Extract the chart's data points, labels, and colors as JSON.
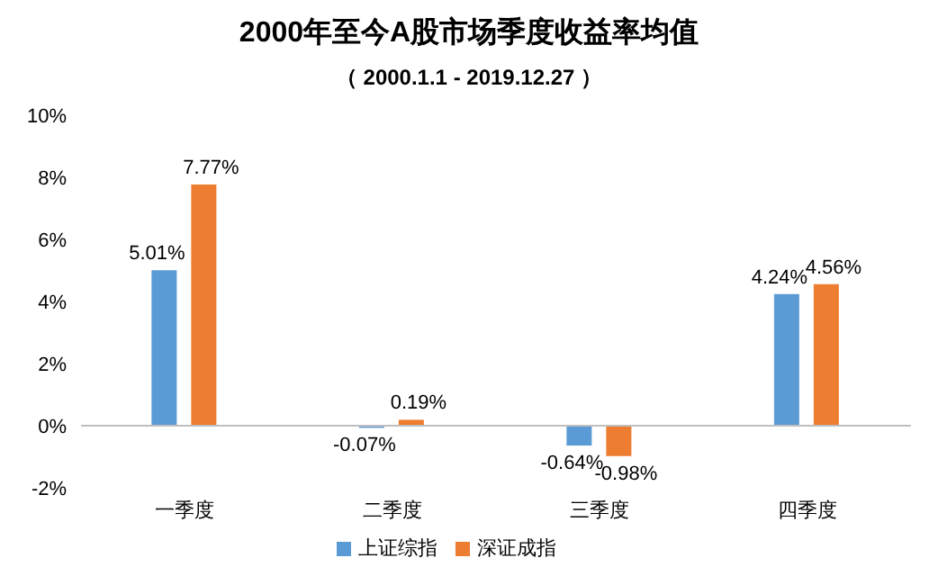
{
  "chart_data": {
    "type": "bar",
    "title": "2000年至今A股市场季度收益率均值",
    "subtitle": "（ 2000.1.1 - 2019.12.27 ）",
    "categories": [
      "一季度",
      "二季度",
      "三季度",
      "四季度"
    ],
    "series": [
      {
        "name": "上证综指",
        "color": "#5b9bd5",
        "values": [
          5.01,
          -0.07,
          -0.64,
          4.24
        ],
        "value_labels": [
          "5.01%",
          "-0.07%",
          "-0.64%",
          "4.24%"
        ]
      },
      {
        "name": "深证成指",
        "color": "#ed7d31",
        "values": [
          7.77,
          0.19,
          -0.98,
          4.56
        ],
        "value_labels": [
          "7.77%",
          "0.19%",
          "-0.98%",
          "4.56%"
        ]
      }
    ],
    "ylim": [
      -2,
      10
    ],
    "yticks": [
      {
        "value": -2,
        "label": "-2%"
      },
      {
        "value": 0,
        "label": "0%"
      },
      {
        "value": 2,
        "label": "2%"
      },
      {
        "value": 4,
        "label": "4%"
      },
      {
        "value": 6,
        "label": "6%"
      },
      {
        "value": 8,
        "label": "8%"
      },
      {
        "value": 10,
        "label": "10%"
      }
    ],
    "legend": "bottom"
  }
}
